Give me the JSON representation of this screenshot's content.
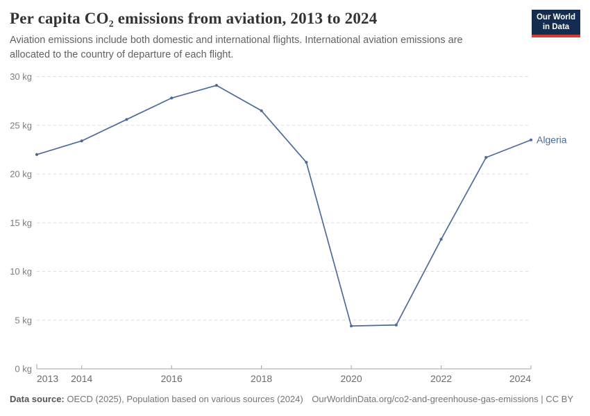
{
  "header": {
    "title": "Per capita CO₂ emissions from aviation, 2013 to 2024",
    "subtitle_line1": "Aviation emissions include both domestic and international flights. International aviation emissions are",
    "subtitle_line2": "allocated to the country of departure of each flight.",
    "logo": {
      "line1": "Our World",
      "line2": "in Data",
      "bg_color": "#132c4f",
      "accent_color": "#d63e32"
    }
  },
  "chart_data": {
    "type": "line",
    "title": "Per capita CO₂ emissions from aviation, 2013 to 2024",
    "x": [
      2013,
      2014,
      2015,
      2016,
      2017,
      2018,
      2019,
      2020,
      2021,
      2022,
      2023,
      2024
    ],
    "series": [
      {
        "name": "Algeria",
        "color": "#4c6a9c",
        "values": [
          22.0,
          23.4,
          25.6,
          27.8,
          29.1,
          26.5,
          21.2,
          4.4,
          4.5,
          13.3,
          21.7,
          23.5
        ]
      }
    ],
    "xlabel": "",
    "ylabel": "",
    "ylim": [
      0,
      30
    ],
    "yticks": [
      0,
      5,
      10,
      15,
      20,
      25,
      30
    ],
    "ytick_labels": [
      "0 kg",
      "5 kg",
      "10 kg",
      "15 kg",
      "20 kg",
      "25 kg",
      "30 kg"
    ],
    "xticks": [
      2013,
      2014,
      2016,
      2018,
      2020,
      2022,
      2024
    ],
    "xtick_labels": [
      "2013",
      "2014",
      "2016",
      "2018",
      "2020",
      "2022",
      "2024"
    ],
    "grid": "horizontal dashed",
    "legend": "end-of-line entity label",
    "colors": {
      "line": "#4c6a9c",
      "gridline": "#dadada",
      "axis": "#a3a3a3",
      "ytick_text": "#7d7d7d",
      "xtick_text": "#6b6b6b"
    }
  },
  "footer": {
    "source_label": "Data source:",
    "source_text": " OECD (2025), Population based on various sources (2024)",
    "license_text": "OurWorldinData.org/co2-and-greenhouse-gas-emissions | CC BY"
  }
}
